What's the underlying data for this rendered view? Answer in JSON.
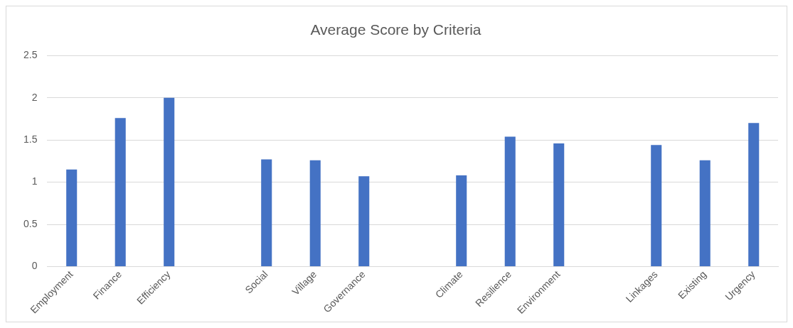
{
  "chart_data": {
    "type": "bar",
    "title": "Average Score by Criteria",
    "categories": [
      "Employment",
      "Finance",
      "Efficiency",
      null,
      "Social",
      "Village",
      "Governance",
      null,
      "Climate",
      "Resilience",
      "Environment",
      null,
      "Linkages",
      "Existing",
      "Urgency"
    ],
    "values": [
      1.15,
      1.76,
      2.0,
      null,
      1.27,
      1.26,
      1.07,
      null,
      1.08,
      1.54,
      1.46,
      null,
      1.44,
      1.26,
      1.7
    ],
    "color": "#4472c4",
    "ylim": [
      0,
      2.5
    ],
    "yticks": [
      0,
      0.5,
      1,
      1.5,
      2,
      2.5
    ],
    "grid": "y"
  }
}
